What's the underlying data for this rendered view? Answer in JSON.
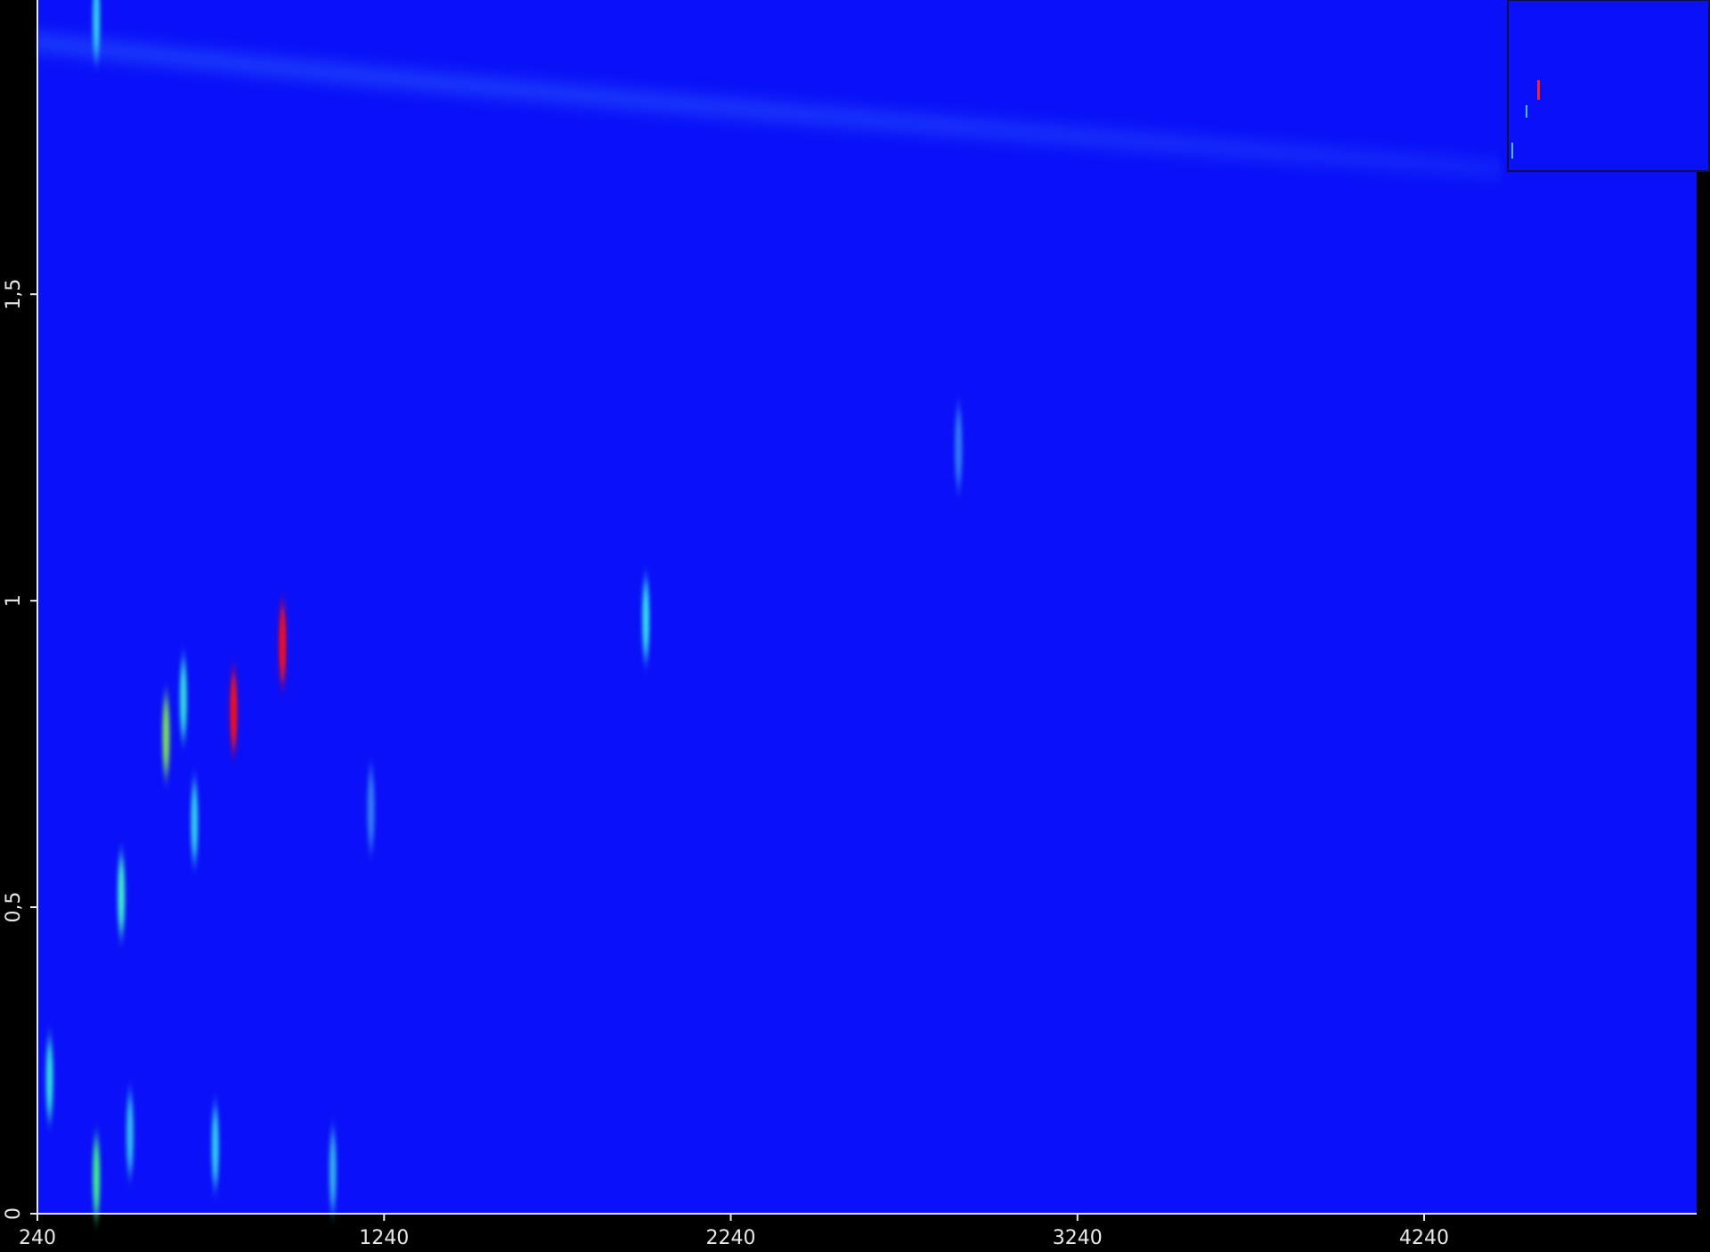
{
  "chart_data": {
    "type": "scatter",
    "x": [
      947,
      806,
      611,
      661,
      482,
      693,
      275,
      410,
      410,
      1995,
      753,
      507,
      1092,
      2897,
      1202
    ],
    "values": [
      0.93,
      0.82,
      0.78,
      0.84,
      0.52,
      0.64,
      0.22,
      0.06,
      1.95,
      0.97,
      0.11,
      0.13,
      0.07,
      1.25,
      0.66
    ],
    "colors": [
      "#ff1010",
      "#ff1010",
      "#7fe060",
      "#30e0e0",
      "#40f0d0",
      "#30d0f0",
      "#30e0e0",
      "#40f090",
      "#30d0f0",
      "#30e0f0",
      "#30d0f0",
      "#30c0f0",
      "#30b0f0",
      "#3080f8",
      "#3080f8"
    ],
    "xlim": [
      240,
      5026
    ],
    "ylim": [
      0,
      1.98
    ],
    "xticks": [
      240,
      1240,
      2240,
      3240,
      4240
    ],
    "yticks": [
      0,
      {
        "value": 0.5,
        "label": "0,5"
      },
      1,
      {
        "value": 1.5,
        "label": "1,5"
      }
    ],
    "color": "#0a10f8"
  }
}
